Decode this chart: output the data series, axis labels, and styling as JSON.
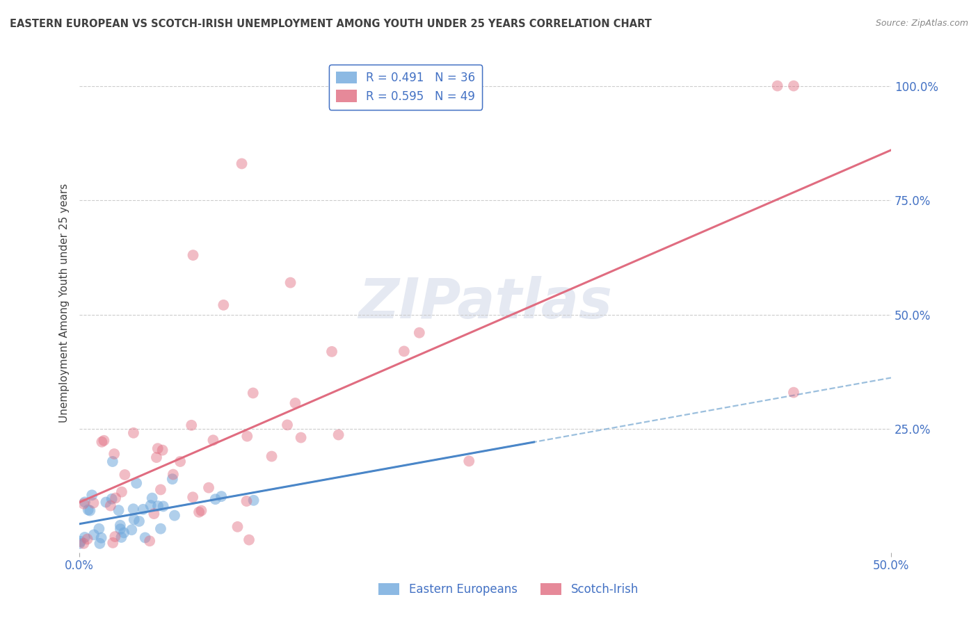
{
  "title": "EASTERN EUROPEAN VS SCOTCH-IRISH UNEMPLOYMENT AMONG YOUTH UNDER 25 YEARS CORRELATION CHART",
  "source": "Source: ZipAtlas.com",
  "ylabel": "Unemployment Among Youth under 25 years",
  "watermark": "ZIPatlas",
  "xmin": 0.0,
  "xmax": 0.5,
  "ymin": -0.02,
  "ymax": 1.07,
  "eastern_R": 0.491,
  "eastern_N": 36,
  "scotch_R": 0.595,
  "scotch_N": 49,
  "eastern_color": "#6fa8dc",
  "scotch_color": "#e06c80",
  "eastern_line_color": "#4a86c8",
  "scotch_line_color": "#e06c80",
  "dashed_line_color": "#8ab4d8",
  "background_color": "#ffffff",
  "grid_color": "#cccccc",
  "label_color": "#4472c4",
  "title_color": "#404040",
  "legend_edge_color": "#4472c4"
}
